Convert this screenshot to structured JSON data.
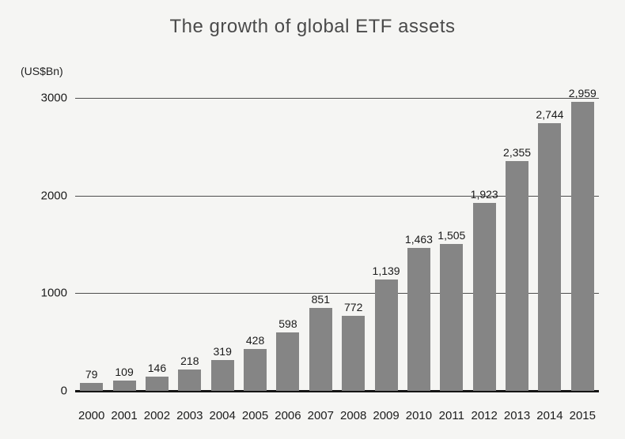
{
  "chart_data": {
    "type": "bar",
    "title": "The growth of global ETF assets",
    "unit_label": "(US$Bn)",
    "categories": [
      "2000",
      "2001",
      "2002",
      "2003",
      "2004",
      "2005",
      "2006",
      "2007",
      "2008",
      "2009",
      "2010",
      "2011",
      "2012",
      "2013",
      "2014",
      "2015"
    ],
    "values": [
      79,
      109,
      146,
      218,
      319,
      428,
      598,
      851,
      772,
      1139,
      1463,
      1505,
      1923,
      2355,
      2744,
      2959
    ],
    "value_labels": [
      "79",
      "109",
      "146",
      "218",
      "319",
      "428",
      "598",
      "851",
      "772",
      "1,139",
      "1,463",
      "1,505",
      "1,923",
      "2,355",
      "2,744",
      "2,959"
    ],
    "xlabel": "",
    "ylabel": "",
    "ylim": [
      0,
      3000
    ],
    "yticks": [
      0,
      1000,
      2000,
      3000
    ],
    "grid": "horizontal",
    "legend": "none",
    "bar_color": "#858585",
    "background_color": "#f5f5f3",
    "gridline_color": "#4d4d4d",
    "axis_color": "#141414"
  }
}
